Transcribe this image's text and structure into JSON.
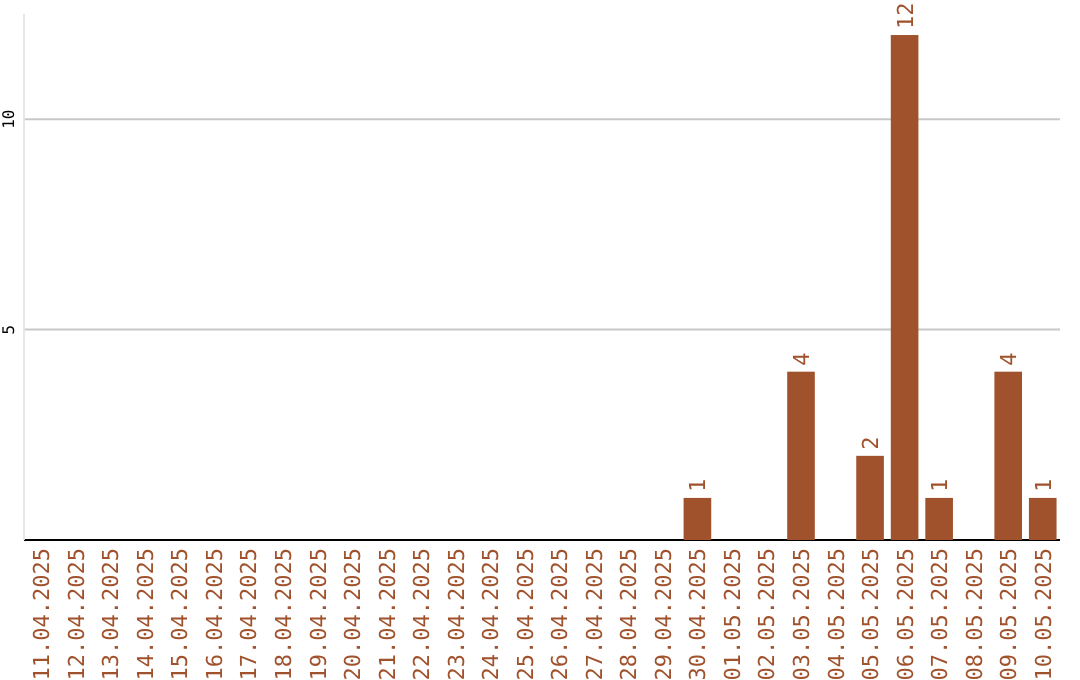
{
  "chart_data": {
    "type": "bar",
    "categories": [
      "11.04.2025",
      "12.04.2025",
      "13.04.2025",
      "14.04.2025",
      "15.04.2025",
      "16.04.2025",
      "17.04.2025",
      "18.04.2025",
      "19.04.2025",
      "20.04.2025",
      "21.04.2025",
      "22.04.2025",
      "23.04.2025",
      "24.04.2025",
      "25.04.2025",
      "26.04.2025",
      "27.04.2025",
      "28.04.2025",
      "29.04.2025",
      "30.04.2025",
      "01.05.2025",
      "02.05.2025",
      "03.05.2025",
      "04.05.2025",
      "05.05.2025",
      "06.05.2025",
      "07.05.2025",
      "08.05.2025",
      "09.05.2025",
      "10.05.2025"
    ],
    "values": [
      0,
      0,
      0,
      0,
      0,
      0,
      0,
      0,
      0,
      0,
      0,
      0,
      0,
      0,
      0,
      0,
      0,
      0,
      0,
      1,
      0,
      0,
      4,
      0,
      2,
      12,
      1,
      0,
      4,
      1
    ],
    "value_labels": [
      null,
      null,
      null,
      null,
      null,
      null,
      null,
      null,
      null,
      null,
      null,
      null,
      null,
      null,
      null,
      null,
      null,
      null,
      null,
      "1",
      null,
      null,
      "4",
      null,
      "2",
      "12",
      "1",
      null,
      "4",
      "1"
    ],
    "color": "#a0522d",
    "ylim": [
      0,
      12.5
    ],
    "yticks": [
      5,
      10
    ],
    "grid": "y"
  }
}
